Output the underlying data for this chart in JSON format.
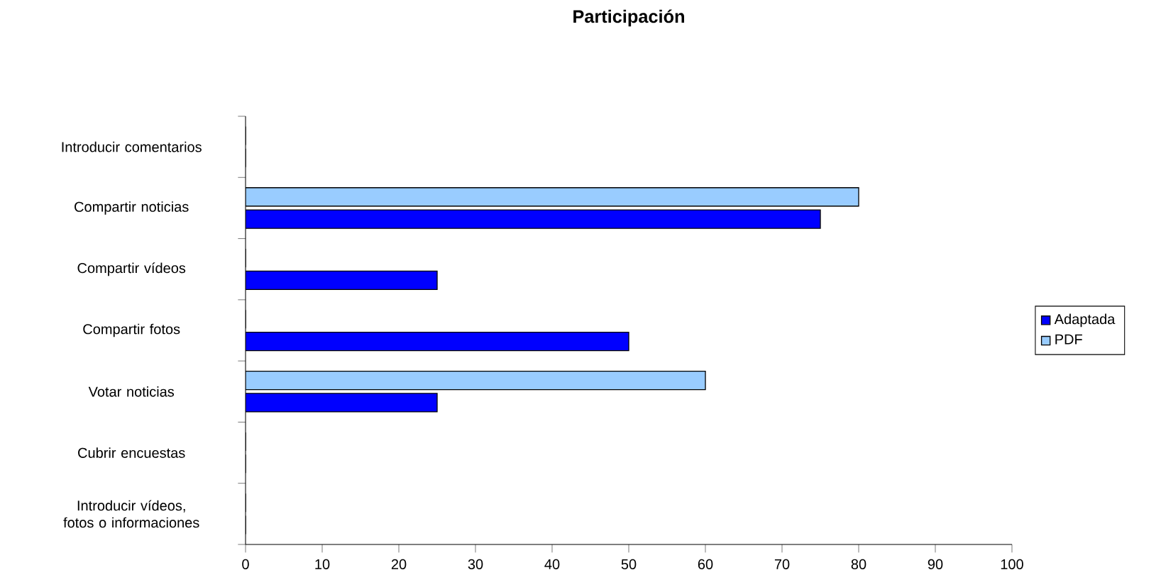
{
  "chart_data": {
    "type": "bar",
    "orientation": "horizontal",
    "title": "Participación",
    "categories": [
      "Introducir comentarios",
      "Compartir noticias",
      "Compartir vídeos",
      "Compartir fotos",
      "Votar noticias",
      "Cubrir encuestas",
      "Introducir vídeos, fotos o informaciones"
    ],
    "series": [
      {
        "name": "Adaptada",
        "color": "#0000ff",
        "values": [
          0,
          75,
          25,
          50,
          25,
          0,
          0
        ]
      },
      {
        "name": "PDF",
        "color": "#99ccff",
        "values": [
          0,
          80,
          0,
          0,
          60,
          0,
          0
        ]
      }
    ],
    "xlim": [
      0,
      100
    ],
    "xticks": [
      0,
      10,
      20,
      30,
      40,
      50,
      60,
      70,
      80,
      90,
      100
    ],
    "grid": false,
    "legend": "right"
  }
}
